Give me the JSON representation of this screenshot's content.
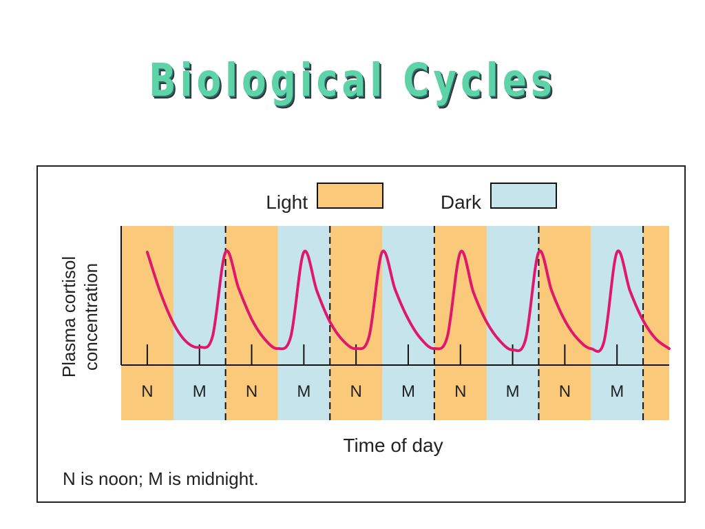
{
  "slide": {
    "title": "Biological Cycles"
  },
  "chart_data": {
    "type": "line",
    "legend": [
      {
        "label": "Light",
        "color": "#fbc97a"
      },
      {
        "label": "Dark",
        "color": "#c5e4ec"
      }
    ],
    "legend_placement": "top",
    "ylabel_lines": [
      "Plasma cortisol",
      "concentration"
    ],
    "xlabel": "Time of day",
    "x_tick_labels": [
      "N",
      "M",
      "N",
      "M",
      "N",
      "M",
      "N",
      "M",
      "N",
      "M"
    ],
    "footnote": "N is noon; M is midnight.",
    "series": [
      {
        "color": "#e0186c",
        "x_hours": [
          12,
          15,
          18,
          21,
          24,
          27,
          30,
          33,
          36,
          39,
          42,
          45,
          48,
          51,
          54,
          57,
          60,
          63,
          66,
          69,
          72,
          75,
          78,
          81,
          84,
          87,
          90,
          93,
          96,
          99,
          102,
          105,
          108,
          111,
          114,
          117,
          120,
          123,
          126,
          129,
          132
        ],
        "values": [
          0.85,
          0.55,
          0.32,
          0.18,
          0.14,
          0.22,
          0.85,
          0.58,
          0.35,
          0.2,
          0.13,
          0.22,
          0.85,
          0.56,
          0.33,
          0.19,
          0.13,
          0.22,
          0.85,
          0.57,
          0.35,
          0.2,
          0.13,
          0.22,
          0.85,
          0.55,
          0.33,
          0.19,
          0.12,
          0.2,
          0.85,
          0.56,
          0.34,
          0.2,
          0.13,
          0.18,
          0.85,
          0.56,
          0.34,
          0.2,
          0.13
        ]
      }
    ],
    "x_range_hours": [
      6,
      132
    ],
    "dark_periods_hours": [
      [
        18,
        30
      ],
      [
        42,
        54
      ],
      [
        66,
        78
      ],
      [
        90,
        102
      ],
      [
        114,
        126
      ]
    ],
    "day_boundaries_hours": [
      30,
      54,
      78,
      102,
      126
    ],
    "grid": false
  }
}
